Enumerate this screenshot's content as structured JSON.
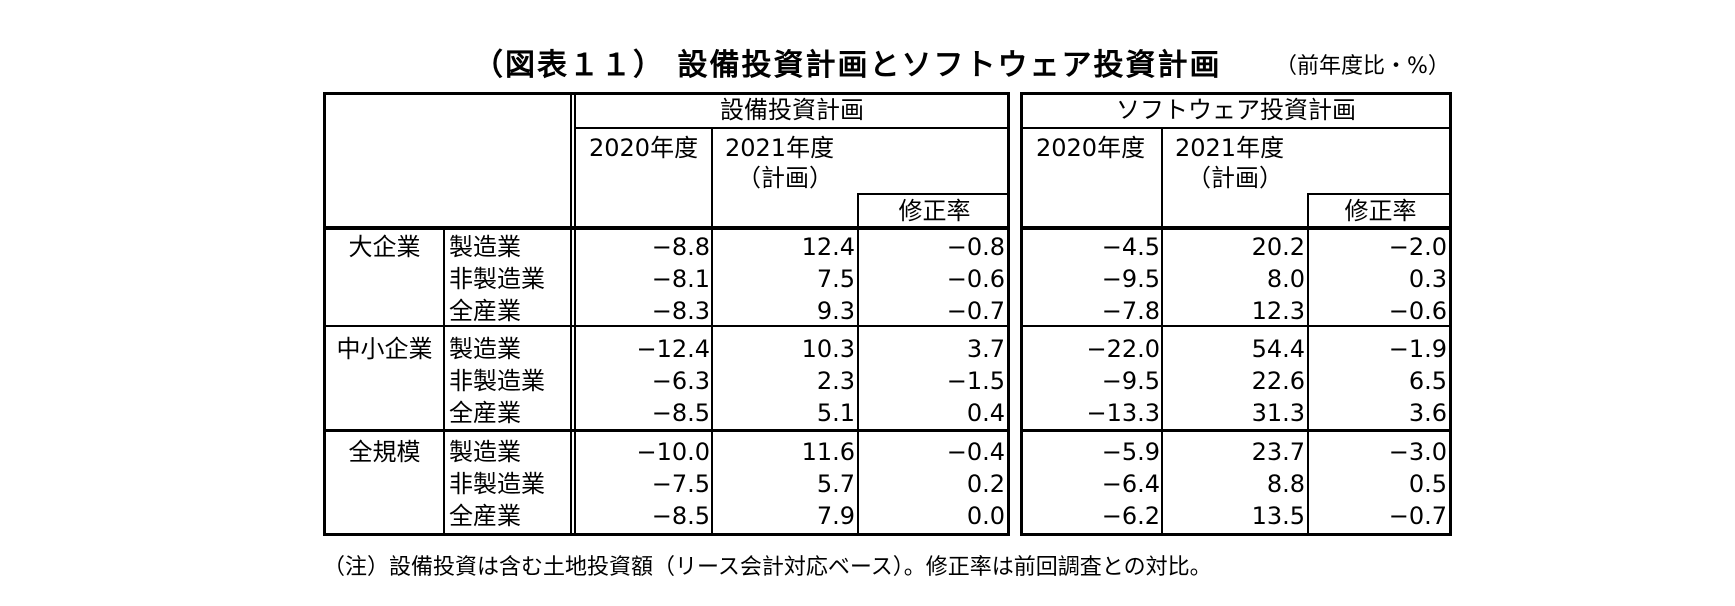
{
  "title": "（図表１１） 設備投資計画とソフトウェア投資計画",
  "unit": "（前年度比・%）",
  "note": "（注）設備投資は含む土地投資額（リース会計対応ベース）。修正率は前回調査との対比。",
  "header": {
    "group1": "設備投資計画",
    "group2": "ソフトウェア投資計画",
    "y2020": "2020年度",
    "y2021": "2021年度",
    "plan": "（計画）",
    "rev": "修正率"
  },
  "sizes": [
    "大企業",
    "中小企業",
    "全規模"
  ],
  "rows": [
    {
      "industry": "製造業",
      "v": [
        "−8.8",
        "12.4",
        "−0.8",
        "−4.5",
        "20.2",
        "−2.0"
      ]
    },
    {
      "industry": "非製造業",
      "v": [
        "−8.1",
        "7.5",
        "−0.6",
        "−9.5",
        "8.0",
        "0.3"
      ]
    },
    {
      "industry": "全産業",
      "v": [
        "−8.3",
        "9.3",
        "−0.7",
        "−7.8",
        "12.3",
        "−0.6"
      ]
    },
    {
      "industry": "製造業",
      "v": [
        "−12.4",
        "10.3",
        "3.7",
        "−22.0",
        "54.4",
        "−1.9"
      ]
    },
    {
      "industry": "非製造業",
      "v": [
        "−6.3",
        "2.3",
        "−1.5",
        "−9.5",
        "22.6",
        "6.5"
      ]
    },
    {
      "industry": "全産業",
      "v": [
        "−8.5",
        "5.1",
        "0.4",
        "−13.3",
        "31.3",
        "3.6"
      ]
    },
    {
      "industry": "製造業",
      "v": [
        "−10.0",
        "11.6",
        "−0.4",
        "−5.9",
        "23.7",
        "−3.0"
      ]
    },
    {
      "industry": "非製造業",
      "v": [
        "−7.5",
        "5.7",
        "0.2",
        "−6.4",
        "8.8",
        "0.5"
      ]
    },
    {
      "industry": "全産業",
      "v": [
        "−8.5",
        "7.9",
        "0.0",
        "−6.2",
        "13.5",
        "−0.7"
      ]
    }
  ]
}
